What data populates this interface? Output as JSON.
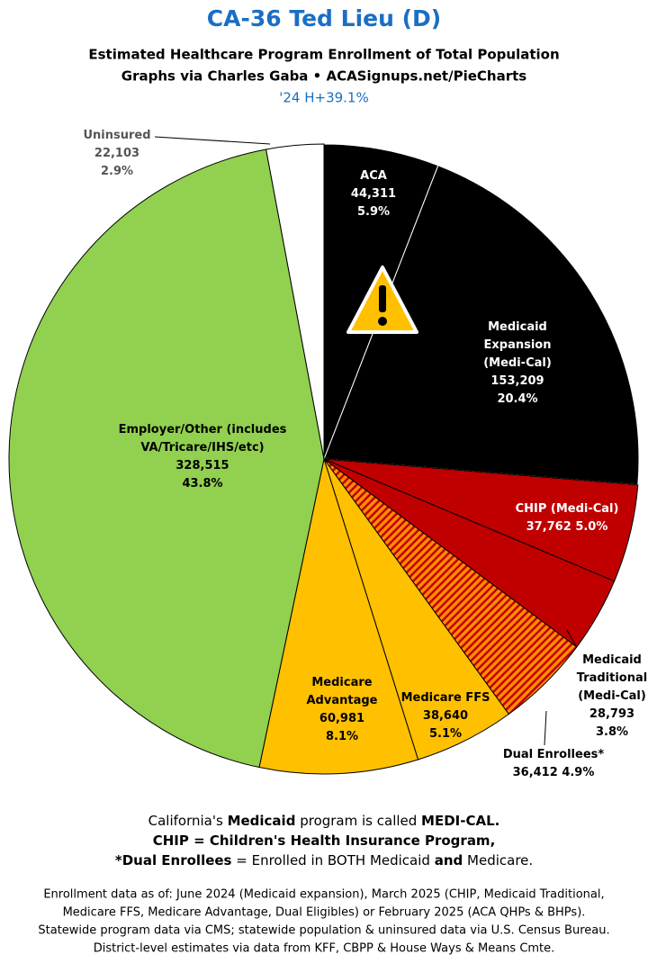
{
  "chart_data": {
    "type": "pie",
    "title": "CA-36 Ted Lieu (D)",
    "subtitle": [
      "Estimated Healthcare Program Enrollment of Total Population",
      "Graphs via Charles Gaba  •  ACASignups.net/PieCharts"
    ],
    "annotation": "'24 H+39.1%",
    "categories": [
      "ACA",
      "Medicaid Expansion (Medi-Cal)",
      "CHIP (Medi-Cal)",
      "Medicaid Traditional (Medi-Cal)",
      "Dual Enrollees*",
      "Medicare FFS",
      "Medicare Advantage",
      "Employer/Other (includes VA/Tricare/IHS/etc)",
      "Uninsured"
    ],
    "values": [
      44311,
      153209,
      37762,
      28793,
      36412,
      38640,
      60981,
      328515,
      22103
    ],
    "value_labels": [
      "44,311",
      "153,209",
      "37,762",
      "28,793",
      "36,412",
      "38,640",
      "60,981",
      "328,515",
      "22,103"
    ],
    "percent_labels": [
      "5.9%",
      "20.4%",
      "5.0%",
      "3.8%",
      "4.9%",
      "5.1%",
      "8.1%",
      "43.8%",
      "2.9%"
    ],
    "colors": [
      "#000000",
      "#000000",
      "#c00000",
      "#c00000",
      "hatch",
      "#ffc000",
      "#ffc000",
      "#92d050",
      "#ffffff"
    ],
    "notes": [
      [
        {
          "text": "California's "
        },
        {
          "text": "Medicaid",
          "bold": true
        },
        {
          "text": " program is called "
        },
        {
          "text": "MEDI-CAL.",
          "bold": true
        }
      ],
      [
        {
          "text": "CHIP = Children's Health Insurance Program,",
          "bold": true
        }
      ],
      [
        {
          "text": "*Dual Enrollees",
          "bold": true
        },
        {
          "text": " = Enrolled in BOTH Medicaid "
        },
        {
          "text": "and",
          "bold": true
        },
        {
          "text": " Medicare."
        }
      ]
    ],
    "footer": [
      "Enrollment data as of: June 2024 (Medicaid expansion), March 2025 (CHIP, Medicaid Traditional,",
      "Medicare FFS, Medicare Advantage, Dual Eligibles) or February 2025 (ACA QHPs & BHPs).",
      "Statewide program data via CMS; statewide population & uninsured data via U.S. Census Bureau.",
      "District-level estimates via data from KFF, CBPP & House Ways & Means Cmte."
    ]
  }
}
